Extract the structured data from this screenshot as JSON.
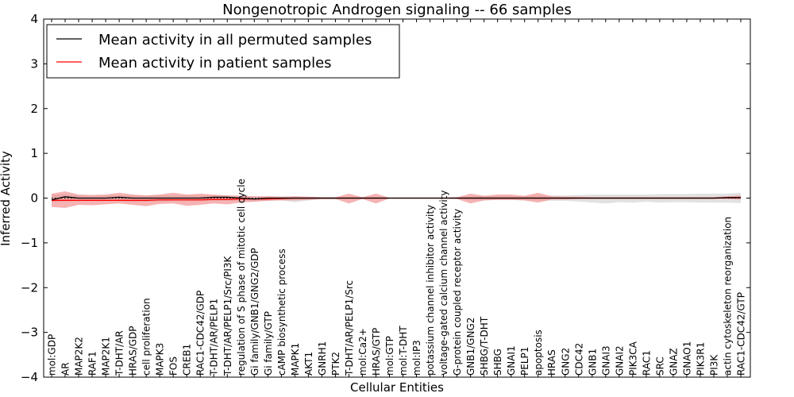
{
  "chart_data": {
    "type": "line",
    "title": "Nongenotropic Androgen signaling -- 66 samples",
    "xlabel": "Cellular Entities",
    "ylabel": "Inferred Activity",
    "ylim": [
      -4,
      4
    ],
    "yticks": [
      -4,
      -3,
      -2,
      -1,
      0,
      1,
      2,
      3,
      4
    ],
    "ytick_labels": [
      "−4",
      "−3",
      "−2",
      "−1",
      "0",
      "1",
      "2",
      "3",
      "4"
    ],
    "legend_position": "top-left",
    "colors": {
      "permuted": "#000000",
      "patient": "#ff0000",
      "patient_band": "#f08080",
      "permuted_band": "#c8c8c8"
    },
    "categories": [
      "mol:GDP",
      "AR",
      "MAP2K2",
      "RAF1",
      "MAP2K1",
      "T-DHT/AR",
      "HRAS/GDP",
      "cell proliferation",
      "MAPK3",
      "FOS",
      "CREB1",
      "RAC1-CDC42/GDP",
      "T-DHT/AR/PELP1",
      "T-DHT/AR/PELP1/Src/PI3K",
      "regulation of S phase of mitotic cell cycle",
      "Gi family/GNB1/GNG2/GDP",
      "Gi family/GTP",
      "cAMP biosynthetic process",
      "MAPK1",
      "AKT1",
      "GNRH1",
      "PTK2",
      "T-DHT/AR/PELP1/Src",
      "mol:Ca2+",
      "HRAS/GTP",
      "mol:GTP",
      "mol:T-DHT",
      "mol:IP3",
      "potassium channel inhibitor activity",
      "voltage-gated calcium channel activity",
      "G-protein coupled receptor activity",
      "GNB1/GNG2",
      "SHBG/T-DHT",
      "SHBG",
      "GNAI1",
      "PELP1",
      "apoptosis",
      "HRAS",
      "GNG2",
      "CDC42",
      "GNB1",
      "GNAI3",
      "GNAI2",
      "PIK3CA",
      "RAC1",
      "SRC",
      "GNAZ",
      "GNAO1",
      "PIK3R1",
      "PI3K",
      "actin cytoskeleton reorganization",
      "RAC1-CDC42/GTP"
    ],
    "series": [
      {
        "name": "Mean activity in all permuted samples",
        "color": "#000000",
        "values": [
          -0.04,
          0.03,
          0.0,
          0.0,
          0.0,
          0.02,
          0.0,
          0.0,
          0.0,
          0.0,
          0.0,
          0.0,
          0.02,
          0.02,
          0.0,
          -0.02,
          0.0,
          0.0,
          0.0,
          0.0,
          0.0,
          0.0,
          0.0,
          0.0,
          0.0,
          0.0,
          0.0,
          0.0,
          0.0,
          0.0,
          0.0,
          0.0,
          0.0,
          0.0,
          0.0,
          0.0,
          0.0,
          0.0,
          0.0,
          0.0,
          0.0,
          0.0,
          0.0,
          0.0,
          0.0,
          0.0,
          0.0,
          0.0,
          0.0,
          0.0,
          0.01,
          0.01
        ],
        "band_low": [
          -0.1,
          -0.07,
          -0.06,
          -0.05,
          -0.06,
          -0.06,
          -0.08,
          -0.08,
          -0.07,
          -0.06,
          -0.06,
          -0.06,
          -0.05,
          -0.05,
          -0.06,
          -0.07,
          -0.06,
          -0.05,
          -0.09,
          -0.05,
          -0.03,
          -0.03,
          -0.02,
          -0.02,
          -0.02,
          -0.01,
          -0.01,
          -0.01,
          -0.01,
          -0.01,
          -0.02,
          -0.04,
          -0.05,
          -0.04,
          -0.04,
          -0.05,
          -0.05,
          -0.06,
          -0.06,
          -0.08,
          -0.1,
          -0.12,
          -0.09,
          -0.1,
          -0.08,
          -0.1,
          -0.09,
          -0.09,
          -0.1,
          -0.1,
          -0.1,
          -0.11
        ],
        "band_high": [
          0.08,
          0.08,
          0.06,
          0.05,
          0.06,
          0.06,
          0.06,
          0.06,
          0.06,
          0.06,
          0.06,
          0.06,
          0.06,
          0.06,
          0.05,
          0.04,
          0.04,
          0.04,
          0.04,
          0.03,
          0.02,
          0.02,
          0.02,
          0.02,
          0.02,
          0.01,
          0.01,
          0.01,
          0.01,
          0.01,
          0.02,
          0.04,
          0.05,
          0.04,
          0.04,
          0.05,
          0.05,
          0.06,
          0.06,
          0.07,
          0.08,
          0.08,
          0.08,
          0.08,
          0.08,
          0.09,
          0.09,
          0.09,
          0.1,
          0.1,
          0.1,
          0.12
        ]
      },
      {
        "name": "Mean activity in patient samples",
        "color": "#ff0000",
        "values": [
          -0.05,
          -0.05,
          -0.05,
          -0.05,
          -0.05,
          -0.05,
          -0.05,
          -0.05,
          -0.04,
          -0.04,
          -0.04,
          -0.04,
          -0.03,
          -0.03,
          -0.02,
          -0.02,
          -0.02,
          -0.01,
          0.0,
          0.0,
          0.0,
          0.0,
          0.0,
          0.0,
          0.0,
          0.0,
          0.0,
          0.0,
          0.0,
          0.0,
          0.0,
          0.0,
          0.0,
          0.0,
          0.0,
          0.0,
          0.0,
          0.0,
          0.0,
          0.0,
          0.0,
          0.0,
          0.0,
          0.0,
          0.0,
          0.0,
          0.0,
          0.0,
          0.0,
          0.0,
          0.01,
          0.01
        ],
        "band_low": [
          -0.2,
          -0.22,
          -0.15,
          -0.16,
          -0.14,
          -0.12,
          -0.15,
          -0.18,
          -0.13,
          -0.12,
          -0.17,
          -0.15,
          -0.12,
          -0.14,
          -0.1,
          -0.08,
          -0.06,
          -0.05,
          -0.05,
          -0.04,
          -0.02,
          -0.02,
          -0.12,
          -0.02,
          -0.12,
          -0.01,
          -0.01,
          -0.01,
          -0.01,
          -0.01,
          -0.02,
          -0.12,
          -0.05,
          -0.04,
          -0.04,
          -0.05,
          -0.1,
          -0.03,
          -0.03,
          -0.02,
          -0.02,
          -0.02,
          -0.02,
          -0.02,
          -0.02,
          -0.02,
          -0.02,
          -0.02,
          -0.02,
          -0.02,
          -0.02,
          -0.03
        ],
        "band_high": [
          0.1,
          0.15,
          0.08,
          0.07,
          0.08,
          0.12,
          0.08,
          0.06,
          0.08,
          0.12,
          0.08,
          0.1,
          0.08,
          0.06,
          0.05,
          0.04,
          0.04,
          0.03,
          0.04,
          0.03,
          0.02,
          0.02,
          0.1,
          0.02,
          0.1,
          0.01,
          0.01,
          0.01,
          0.01,
          0.01,
          0.02,
          0.1,
          0.05,
          0.08,
          0.08,
          0.05,
          0.12,
          0.04,
          0.03,
          0.03,
          0.02,
          0.02,
          0.02,
          0.02,
          0.02,
          0.02,
          0.02,
          0.02,
          0.02,
          0.02,
          0.04,
          0.06
        ]
      }
    ],
    "dotted_baseline": 0
  }
}
